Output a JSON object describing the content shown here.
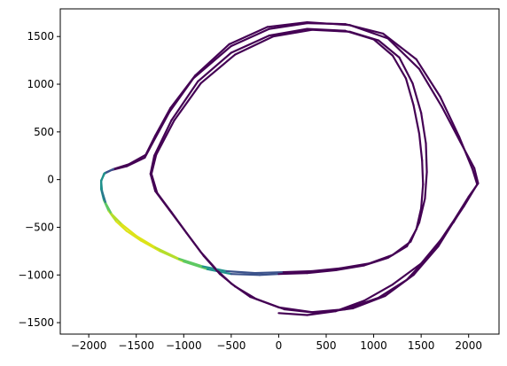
{
  "chart_data": {
    "type": "line",
    "title": "",
    "xlabel": "",
    "ylabel": "",
    "xlim": [
      -2300,
      2320
    ],
    "ylim": [
      -1620,
      1790
    ],
    "x_ticks": [
      -2000,
      -1500,
      -1000,
      -500,
      0,
      500,
      1000,
      1500,
      2000
    ],
    "x_tick_labels": [
      "−2000",
      "−1500",
      "−1000",
      "−500",
      "0",
      "500",
      "1000",
      "1500",
      "2000"
    ],
    "y_ticks": [
      -1500,
      -1000,
      -500,
      0,
      500,
      1000,
      1500
    ],
    "y_tick_labels": [
      "−1500",
      "−1000",
      "−500",
      "0",
      "500",
      "1000",
      "1500"
    ],
    "grid": false,
    "legend": "none",
    "colormap": "viridis",
    "colors": {
      "base": "#440154",
      "mid": "#3b528b",
      "teal": "#21918c",
      "green": "#5ec962",
      "yellow": "#dde318"
    },
    "series": [
      {
        "points": [
          [
            0,
            -1400
          ],
          [
            300,
            -1420
          ],
          [
            600,
            -1380
          ],
          [
            900,
            -1270
          ],
          [
            1200,
            -1100
          ],
          [
            1500,
            -880
          ],
          [
            1750,
            -580
          ],
          [
            1950,
            -280
          ],
          [
            2090,
            -50
          ],
          [
            2040,
            110
          ],
          [
            1900,
            450
          ],
          [
            1700,
            870
          ],
          [
            1450,
            1260
          ],
          [
            1100,
            1530
          ],
          [
            700,
            1630
          ],
          [
            300,
            1640
          ],
          [
            -100,
            1580
          ],
          [
            -500,
            1400
          ],
          [
            -900,
            1060
          ],
          [
            -1150,
            710
          ],
          [
            -1330,
            380
          ],
          [
            -1410,
            230
          ],
          [
            -1600,
            140
          ],
          [
            -1760,
            100
          ],
          [
            -1840,
            60
          ],
          [
            -1870,
            -20
          ],
          [
            -1870,
            -100
          ],
          [
            -1840,
            -220
          ],
          [
            -1790,
            -330
          ],
          [
            -1710,
            -440
          ],
          [
            -1600,
            -540
          ],
          [
            -1450,
            -640
          ],
          [
            -1250,
            -750
          ],
          [
            -1000,
            -860
          ],
          [
            -750,
            -940
          ],
          [
            -500,
            -990
          ],
          [
            -200,
            -1000
          ],
          [
            0,
            -990
          ],
          [
            300,
            -980
          ],
          [
            600,
            -950
          ],
          [
            900,
            -900
          ],
          [
            1150,
            -820
          ],
          [
            1350,
            -700
          ],
          [
            1450,
            -520
          ],
          [
            1500,
            -300
          ],
          [
            1520,
            -50
          ],
          [
            1510,
            200
          ],
          [
            1480,
            480
          ],
          [
            1420,
            780
          ],
          [
            1340,
            1060
          ],
          [
            1200,
            1300
          ],
          [
            1000,
            1470
          ],
          [
            700,
            1560
          ],
          [
            300,
            1580
          ],
          [
            -100,
            1510
          ],
          [
            -500,
            1330
          ],
          [
            -850,
            1030
          ],
          [
            -1130,
            620
          ],
          [
            -1310,
            250
          ],
          [
            -1350,
            60
          ],
          [
            -1300,
            -120
          ],
          [
            -1150,
            -320
          ],
          [
            -1000,
            -520
          ],
          [
            -820,
            -760
          ],
          [
            -640,
            -960
          ],
          [
            -500,
            -1090
          ],
          [
            -300,
            -1230
          ],
          [
            0,
            -1340
          ],
          [
            350,
            -1390
          ],
          [
            700,
            -1360
          ],
          [
            1050,
            -1240
          ],
          [
            1350,
            -1050
          ],
          [
            1620,
            -760
          ],
          [
            1850,
            -420
          ],
          [
            2000,
            -180
          ],
          [
            2100,
            -40
          ],
          [
            2060,
            120
          ],
          [
            1910,
            400
          ],
          [
            1720,
            760
          ],
          [
            1480,
            1160
          ],
          [
            1150,
            1480
          ],
          [
            750,
            1620
          ],
          [
            300,
            1650
          ],
          [
            -120,
            1600
          ],
          [
            -520,
            1420
          ],
          [
            -880,
            1090
          ],
          [
            -1140,
            750
          ],
          [
            -1300,
            460
          ],
          [
            -1400,
            260
          ],
          [
            -1580,
            160
          ],
          [
            -1740,
            110
          ],
          [
            -1830,
            70
          ],
          [
            -1870,
            -10
          ],
          [
            -1860,
            -120
          ],
          [
            -1820,
            -250
          ],
          [
            -1760,
            -360
          ],
          [
            -1650,
            -470
          ],
          [
            -1500,
            -590
          ],
          [
            -1300,
            -710
          ],
          [
            -1050,
            -830
          ],
          [
            -800,
            -910
          ],
          [
            -550,
            -960
          ],
          [
            -250,
            -980
          ],
          [
            50,
            -970
          ],
          [
            350,
            -960
          ],
          [
            650,
            -930
          ],
          [
            950,
            -880
          ],
          [
            1200,
            -790
          ],
          [
            1390,
            -650
          ],
          [
            1480,
            -450
          ],
          [
            1540,
            -200
          ],
          [
            1560,
            80
          ],
          [
            1550,
            380
          ],
          [
            1500,
            700
          ],
          [
            1410,
            1010
          ],
          [
            1270,
            1280
          ],
          [
            1050,
            1460
          ],
          [
            750,
            1550
          ],
          [
            350,
            1570
          ],
          [
            -60,
            1500
          ],
          [
            -460,
            1310
          ],
          [
            -820,
            1010
          ],
          [
            -1100,
            620
          ],
          [
            -1290,
            260
          ],
          [
            -1340,
            60
          ],
          [
            -1280,
            -140
          ],
          [
            -1130,
            -340
          ],
          [
            -970,
            -560
          ],
          [
            -790,
            -800
          ],
          [
            -620,
            -990
          ],
          [
            -460,
            -1120
          ],
          [
            -240,
            -1250
          ],
          [
            60,
            -1360
          ],
          [
            420,
            -1400
          ],
          [
            780,
            -1350
          ],
          [
            1120,
            -1220
          ],
          [
            1420,
            -1000
          ],
          [
            1680,
            -700
          ],
          [
            1880,
            -380
          ],
          [
            1840,
            -450
          ]
        ],
        "colors": [
          "#440154",
          "#440154",
          "#440154",
          "#440154",
          "#440154",
          "#440154",
          "#440154",
          "#440154",
          "#440154",
          "#440154",
          "#440154",
          "#440154",
          "#440154",
          "#440154",
          "#440154",
          "#440154",
          "#440154",
          "#440154",
          "#440154",
          "#440154",
          "#440154",
          "#440154",
          "#440154",
          "#3b528b",
          "#21918c",
          "#21918c",
          "#21918c",
          "#5ec962",
          "#b5de2b",
          "#dde318",
          "#dde318",
          "#dde318",
          "#b5de2b",
          "#5ec962",
          "#21918c",
          "#3b528b",
          "#3b528b",
          "#440154",
          "#440154",
          "#440154",
          "#440154",
          "#440154",
          "#440154",
          "#440154",
          "#440154",
          "#440154",
          "#440154",
          "#440154",
          "#440154",
          "#440154",
          "#440154",
          "#440154",
          "#440154",
          "#440154",
          "#440154",
          "#440154",
          "#440154",
          "#440154",
          "#440154",
          "#440154",
          "#440154",
          "#440154",
          "#440154",
          "#440154",
          "#440154",
          "#440154",
          "#440154",
          "#440154",
          "#440154",
          "#440154",
          "#440154",
          "#440154",
          "#440154",
          "#440154",
          "#440154",
          "#440154",
          "#440154",
          "#440154",
          "#440154",
          "#440154",
          "#440154",
          "#440154",
          "#440154",
          "#440154",
          "#440154",
          "#440154",
          "#440154",
          "#440154",
          "#440154",
          "#440154",
          "#3b528b",
          "#21918c",
          "#21918c",
          "#2a788e",
          "#5ec962",
          "#b5de2b",
          "#dde318",
          "#dde318",
          "#b5de2b",
          "#5ec962",
          "#21918c",
          "#3b528b",
          "#3b528b",
          "#440154",
          "#440154",
          "#440154",
          "#440154",
          "#440154",
          "#440154",
          "#440154",
          "#440154",
          "#440154",
          "#440154",
          "#440154",
          "#440154",
          "#440154",
          "#440154",
          "#440154",
          "#440154",
          "#440154",
          "#440154",
          "#440154",
          "#440154",
          "#440154",
          "#440154",
          "#440154",
          "#440154",
          "#440154",
          "#440154",
          "#440154",
          "#440154",
          "#440154",
          "#440154",
          "#440154",
          "#440154",
          "#440154",
          "#440154",
          "#440154",
          "#440154",
          "#440154",
          "#440154"
        ]
      }
    ]
  }
}
